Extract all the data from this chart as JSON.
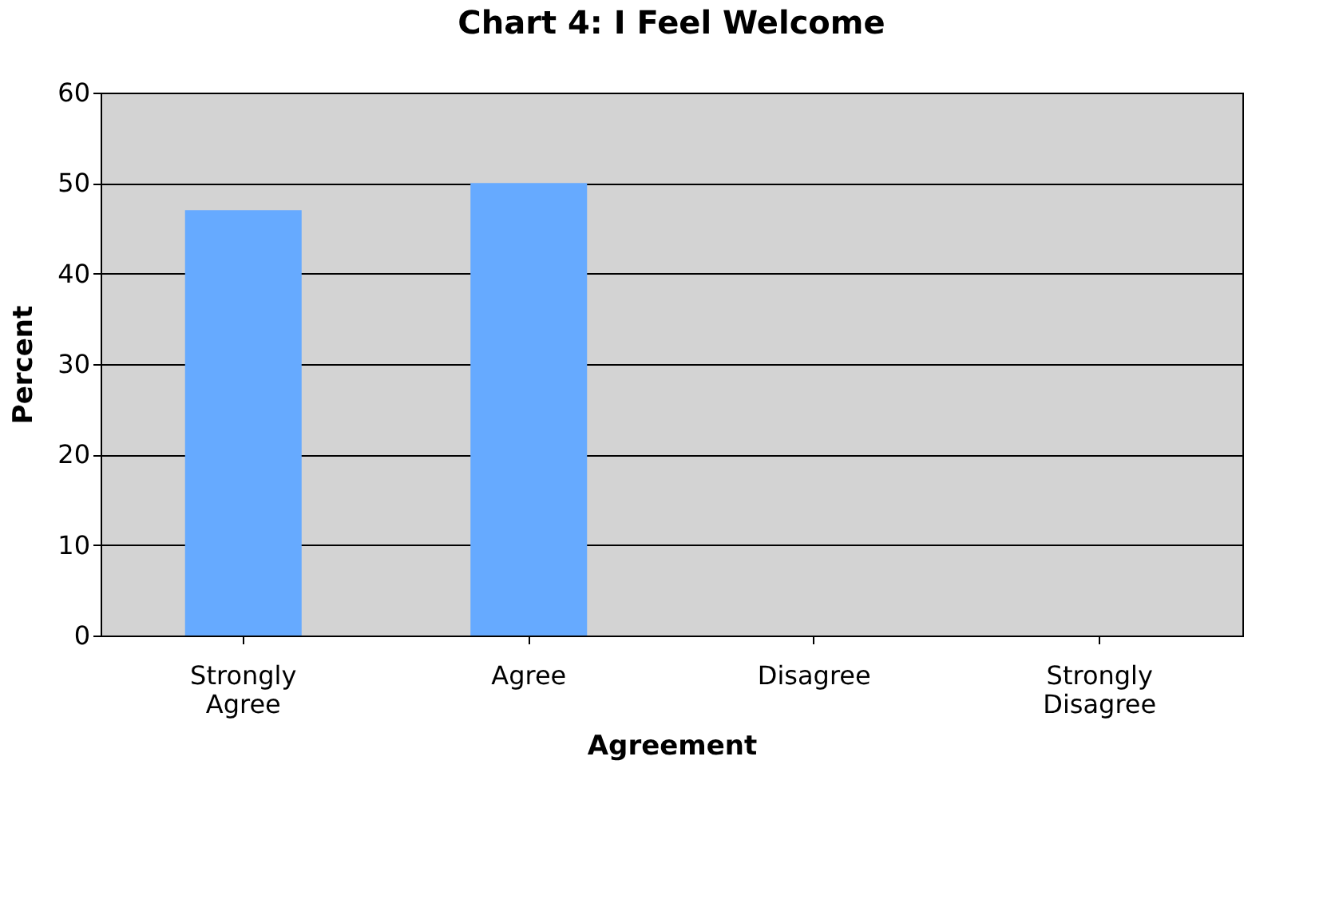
{
  "chart_data": {
    "type": "bar",
    "title": "Chart 4: I Feel Welcome",
    "xlabel": "Agreement",
    "ylabel": "Percent",
    "categories": [
      "Strongly Agree",
      "Agree",
      "Disagree",
      "Strongly Disagree"
    ],
    "values": [
      47,
      50,
      0,
      0
    ],
    "color": "#66aaff",
    "ylim": [
      0,
      60
    ],
    "yticks": [
      0,
      10,
      20,
      30,
      40,
      50,
      60
    ],
    "grid": "y"
  }
}
